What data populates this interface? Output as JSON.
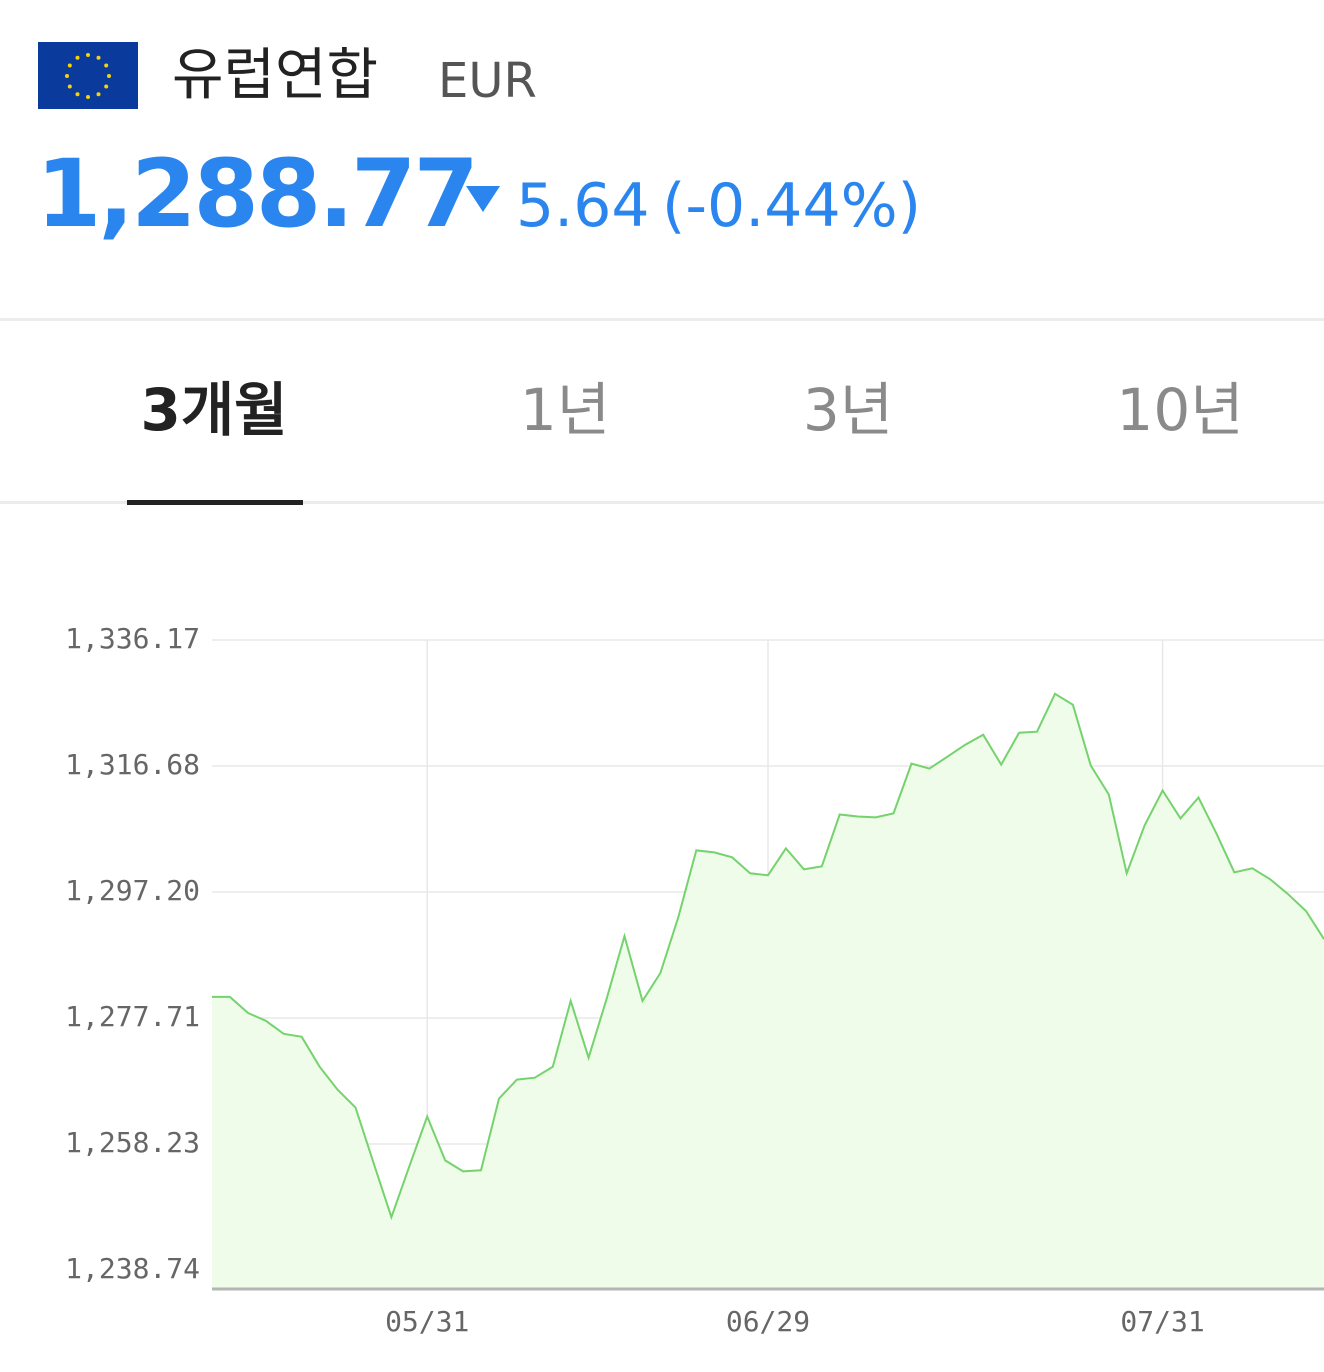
{
  "header": {
    "title": "유럽연합",
    "code": "EUR",
    "price": "1,288.77",
    "change": "5.64",
    "change_pct": "(-0.44%)"
  },
  "tabs": [
    "3개월",
    "1년",
    "3년",
    "10년"
  ],
  "chart_data": {
    "type": "line",
    "categories": [
      null,
      null,
      null,
      null,
      null,
      null,
      null,
      null,
      null,
      null,
      null,
      null,
      "05/31",
      null,
      null,
      null,
      null,
      null,
      null,
      null,
      null,
      null,
      null,
      null,
      null,
      null,
      null,
      null,
      null,
      null,
      null,
      "06/29",
      null,
      null,
      null,
      null,
      null,
      null,
      null,
      null,
      null,
      null,
      null,
      null,
      null,
      null,
      null,
      null,
      null,
      null,
      null,
      null,
      null,
      "07/31",
      null,
      null,
      null,
      null,
      null,
      null,
      null,
      null,
      null
    ],
    "values": [
      1280.98,
      1280.98,
      1278.51,
      1277.28,
      1275.28,
      1274.81,
      1270.19,
      1266.64,
      1263.87,
      1255.39,
      1246.91,
      1254.77,
      1262.48,
      1255.7,
      1254.0,
      1254.16,
      1265.26,
      1268.19,
      1268.49,
      1270.19,
      1280.36,
      1271.58,
      1280.67,
      1290.38,
      1280.36,
      1284.68,
      1293.31,
      1303.64,
      1303.33,
      1302.56,
      1300.1,
      1299.79,
      1303.95,
      1300.71,
      1301.17,
      1309.19,
      1308.88,
      1308.73,
      1309.35,
      1317.05,
      1316.28,
      1318.13,
      1319.98,
      1321.52,
      1316.9,
      1321.83,
      1321.99,
      1327.85,
      1326.15,
      1316.75,
      1312.28,
      1300.1,
      1307.5,
      1312.89,
      1308.58,
      1311.81,
      1306.26,
      1300.25,
      1300.87,
      1299.17,
      1296.86,
      1294.24,
      1289.92
    ],
    "color": "#74d36c",
    "area_color": "#effce9",
    "ylim": [
      1235.81,
      1336.17
    ],
    "yticks": [
      {
        "value": 1336.17,
        "label": "1,336.17"
      },
      {
        "value": 1316.68,
        "label": "1,316.68"
      },
      {
        "value": 1297.2,
        "label": "1,297.20"
      },
      {
        "value": 1277.71,
        "label": "1,277.71"
      },
      {
        "value": 1258.23,
        "label": "1,258.23"
      },
      {
        "value": 1238.74,
        "label": "1,238.74"
      }
    ],
    "grid": true
  }
}
